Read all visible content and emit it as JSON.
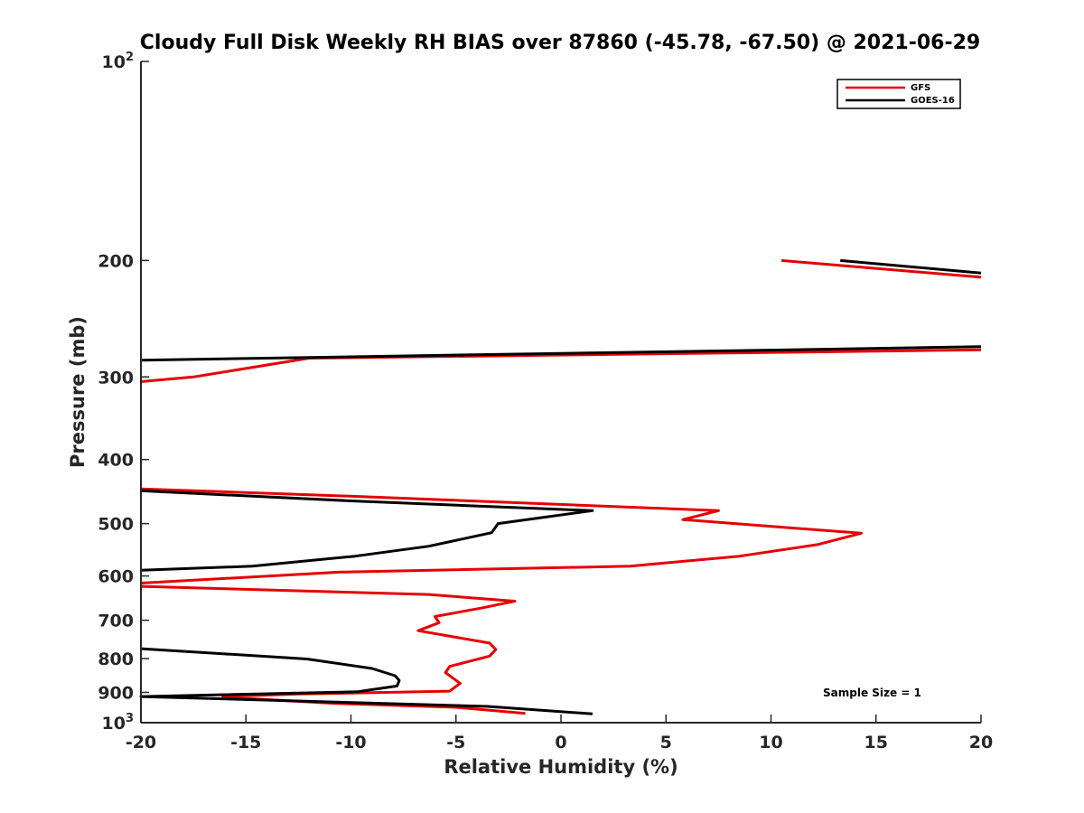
{
  "chart_data": {
    "type": "line",
    "title": "Cloudy Full Disk Weekly RH BIAS over 87860 (-45.78, -67.50) @ 2021-06-29",
    "xlabel": "Relative Humidity (%)",
    "ylabel": "Pressure (mb)",
    "xlim": [
      -20,
      20
    ],
    "ylim": [
      100,
      1000
    ],
    "yscale": "log",
    "y_reversed": true,
    "x_ticks": [
      "-20",
      "-15",
      "-10",
      "-5",
      "0",
      "5",
      "10",
      "15",
      "20"
    ],
    "y_ticks": [
      {
        "value": 100,
        "base": "10",
        "exp": "2"
      },
      {
        "value": 200,
        "label": "200"
      },
      {
        "value": 300,
        "label": "300"
      },
      {
        "value": 400,
        "label": "400"
      },
      {
        "value": 500,
        "label": "500"
      },
      {
        "value": 600,
        "label": "600"
      },
      {
        "value": 700,
        "label": "700"
      },
      {
        "value": 800,
        "label": "800"
      },
      {
        "value": 900,
        "label": "900"
      },
      {
        "value": 1000,
        "base": "10",
        "exp": "3"
      }
    ],
    "grid": false,
    "legend_position": "top-right",
    "annotation": "Sample Size = 1",
    "series": [
      {
        "name": "GFS",
        "color": "#e60000",
        "segments": [
          [
            [
              10.5,
              200
            ],
            [
              20,
              212
            ]
          ],
          [
            [
              20,
              273
            ],
            [
              -12,
              281
            ],
            [
              -17.5,
              300
            ],
            [
              -20,
              305
            ]
          ],
          [
            [
              -20,
              443
            ],
            [
              -9.5,
              455
            ],
            [
              7.5,
              478
            ],
            [
              5.8,
              493
            ],
            [
              14.3,
              517
            ],
            [
              12.2,
              538
            ],
            [
              8.5,
              560
            ],
            [
              3.3,
              580
            ],
            [
              -10.5,
              592
            ],
            [
              -20,
              615
            ]
          ],
          [
            [
              -20,
              622
            ],
            [
              -6.3,
              640
            ],
            [
              -2.2,
              655
            ],
            [
              -3.7,
              670
            ],
            [
              -6,
              691
            ],
            [
              -5.8,
              706
            ],
            [
              -6.8,
              726
            ],
            [
              -3.4,
              758
            ],
            [
              -3.1,
              775
            ],
            [
              -3.4,
              793
            ],
            [
              -5.3,
              822
            ],
            [
              -5.5,
              840
            ],
            [
              -4.8,
              872
            ],
            [
              -5.3,
              896
            ],
            [
              -12.5,
              905
            ],
            [
              -16.1,
              913
            ],
            [
              -15.5,
              917
            ],
            [
              -10.8,
              935
            ],
            [
              -5,
              948
            ],
            [
              -1.7,
              968
            ]
          ]
        ]
      },
      {
        "name": "GOES-16",
        "color": "#000000",
        "segments": [
          [
            [
              13.3,
              200
            ],
            [
              20,
              209
            ]
          ],
          [
            [
              20,
              270
            ],
            [
              -20,
              283
            ]
          ],
          [
            [
              -20,
              446
            ],
            [
              -10,
              462
            ],
            [
              1.5,
              478
            ],
            [
              -3.0,
              500
            ],
            [
              -3.3,
              516
            ],
            [
              -6.3,
              541
            ],
            [
              -9.8,
              560
            ],
            [
              -14.7,
              580
            ],
            [
              -20,
              588
            ]
          ],
          [
            [
              -20,
              773
            ],
            [
              -12.1,
              801
            ],
            [
              -9.0,
              828
            ],
            [
              -7.9,
              849
            ],
            [
              -7.7,
              863
            ],
            [
              -7.8,
              880
            ],
            [
              -9.7,
              898
            ],
            [
              -20,
              913
            ],
            [
              -3.5,
              945
            ],
            [
              1.5,
              970
            ]
          ]
        ]
      }
    ]
  }
}
